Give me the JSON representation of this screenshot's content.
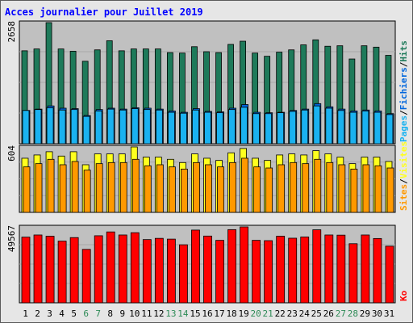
{
  "title": "Acces journalier pour Juillet 2019",
  "colors": {
    "background": "#e6e6e6",
    "panel": "#c0c0c0",
    "title": "#0000ff",
    "hits": "#1e7a5a",
    "pages": "#1ab2f0",
    "files": "#0066dd",
    "visits": "#ffff1e",
    "sites": "#ff9900",
    "kb": "#ff0000",
    "weekend_label": "#2e8b57",
    "weekday_label": "#000000"
  },
  "chart_data": [
    {
      "type": "bar",
      "ymax_label": "2658",
      "ylim": [
        0,
        2658
      ],
      "legend": [
        {
          "text": "Pages",
          "color": "#1ab2f0"
        },
        {
          "text": "/",
          "color": "#000000"
        },
        {
          "text": "Fichiers",
          "color": "#0066dd"
        },
        {
          "text": "/",
          "color": "#000000"
        },
        {
          "text": "Hits",
          "color": "#1e7a5a"
        }
      ],
      "categories": [
        "1",
        "2",
        "3",
        "4",
        "5",
        "6",
        "7",
        "8",
        "9",
        "10",
        "11",
        "12",
        "13",
        "14",
        "15",
        "16",
        "17",
        "18",
        "19",
        "20",
        "21",
        "22",
        "23",
        "24",
        "25",
        "26",
        "27",
        "28",
        "29",
        "30",
        "31"
      ],
      "series": [
        {
          "name": "Hits",
          "color": "#1e7a5a",
          "values": [
            2040,
            2080,
            2658,
            2080,
            2030,
            1810,
            2060,
            2260,
            2040,
            2080,
            2080,
            2080,
            2000,
            1990,
            2130,
            2020,
            2000,
            2180,
            2250,
            1990,
            1920,
            2010,
            2060,
            2170,
            2280,
            2140,
            2150,
            1860,
            2150,
            2120,
            1940
          ]
        },
        {
          "name": "Fichiers",
          "color": "#0066dd",
          "values": [
            730,
            760,
            830,
            780,
            770,
            620,
            750,
            780,
            760,
            790,
            780,
            760,
            720,
            690,
            770,
            710,
            700,
            780,
            860,
            690,
            680,
            690,
            730,
            760,
            880,
            810,
            760,
            720,
            740,
            720,
            660
          ]
        },
        {
          "name": "Pages",
          "color": "#1ab2f0",
          "values": [
            730,
            750,
            790,
            740,
            750,
            600,
            720,
            760,
            740,
            770,
            750,
            740,
            690,
            670,
            740,
            690,
            680,
            750,
            800,
            660,
            660,
            680,
            710,
            740,
            830,
            780,
            730,
            690,
            720,
            690,
            640
          ]
        }
      ]
    },
    {
      "type": "bar",
      "ymax_label": "604",
      "ylim": [
        0,
        604
      ],
      "legend": [
        {
          "text": "Sites",
          "color": "#ff9900"
        },
        {
          "text": "/",
          "color": "#000000"
        },
        {
          "text": "Visites",
          "color": "#ffff1e"
        }
      ],
      "categories": [
        "1",
        "2",
        "3",
        "4",
        "5",
        "6",
        "7",
        "8",
        "9",
        "10",
        "11",
        "12",
        "13",
        "14",
        "15",
        "16",
        "17",
        "18",
        "19",
        "20",
        "21",
        "22",
        "23",
        "24",
        "25",
        "26",
        "27",
        "28",
        "29",
        "30",
        "31"
      ],
      "series": [
        {
          "name": "Visites",
          "color": "#ffff1e",
          "values": [
            500,
            530,
            560,
            520,
            560,
            440,
            540,
            540,
            540,
            604,
            510,
            510,
            490,
            460,
            540,
            500,
            480,
            550,
            590,
            500,
            480,
            530,
            540,
            530,
            570,
            540,
            510,
            450,
            510,
            510,
            470
          ]
        },
        {
          "name": "Sites",
          "color": "#ff9900",
          "values": [
            420,
            450,
            490,
            440,
            470,
            390,
            450,
            460,
            460,
            490,
            430,
            440,
            420,
            400,
            460,
            440,
            420,
            460,
            500,
            420,
            410,
            440,
            460,
            450,
            490,
            460,
            440,
            400,
            440,
            430,
            410
          ]
        }
      ]
    },
    {
      "type": "bar",
      "ymax_label": "49567",
      "ylim": [
        0,
        49567
      ],
      "legend": [
        {
          "text": "Ko",
          "color": "#ff0000"
        }
      ],
      "categories": [
        "1",
        "2",
        "3",
        "4",
        "5",
        "6",
        "7",
        "8",
        "9",
        "10",
        "11",
        "12",
        "13",
        "14",
        "15",
        "16",
        "17",
        "18",
        "19",
        "20",
        "21",
        "22",
        "23",
        "24",
        "25",
        "26",
        "27",
        "28",
        "29",
        "30",
        "31"
      ],
      "weekend_days": [
        6,
        7,
        13,
        14,
        20,
        21,
        27,
        28
      ],
      "series": [
        {
          "name": "Ko",
          "color": "#ff0000",
          "values": [
            42900,
            44300,
            43500,
            40300,
            42600,
            34900,
            43800,
            46300,
            44300,
            45800,
            41300,
            42100,
            41600,
            37900,
            47500,
            43600,
            40800,
            47800,
            49567,
            40800,
            40600,
            43500,
            42200,
            43000,
            47700,
            44300,
            44200,
            38600,
            44300,
            42000,
            37000
          ]
        }
      ]
    }
  ]
}
